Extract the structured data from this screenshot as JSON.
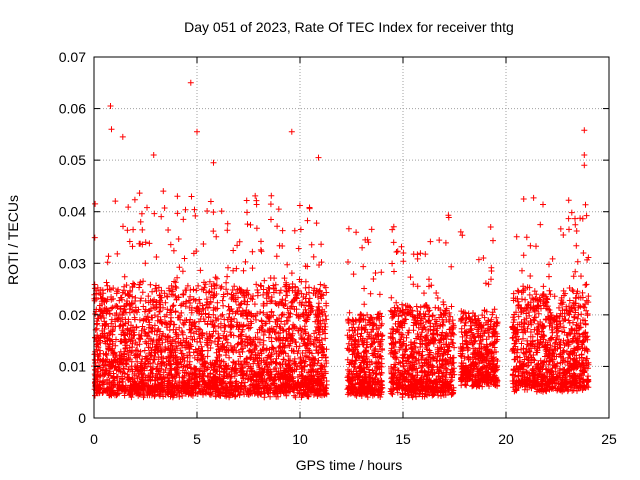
{
  "chart_data": {
    "type": "scatter",
    "title": "Day 051 of 2023, Rate Of TEC Index for receiver thtg",
    "xlabel": "GPS time / hours",
    "ylabel": "ROTI / TECUs",
    "xlim": [
      0,
      25
    ],
    "ylim": [
      0,
      0.07
    ],
    "x_ticks": [
      0,
      5,
      10,
      15,
      20,
      25
    ],
    "x_tick_labels": [
      "0",
      "5",
      "10",
      "15",
      "20",
      "25"
    ],
    "y_ticks": [
      0,
      0.01,
      0.02,
      0.03,
      0.04,
      0.05,
      0.06,
      0.07
    ],
    "y_tick_labels": [
      "0",
      "0.01",
      "0.02",
      "0.03",
      "0.04",
      "0.05",
      "0.06",
      "0.07"
    ],
    "grid": true,
    "marker": "plus",
    "color": "#ff0000",
    "coverage": [
      {
        "x_start": 0.0,
        "x_end": 11.3,
        "y_min": 0.002,
        "y_typical_max": 0.026
      },
      {
        "x_start": 12.3,
        "x_end": 14.0,
        "y_min": 0.002,
        "y_typical_max": 0.02
      },
      {
        "x_start": 14.4,
        "x_end": 17.5,
        "y_min": 0.002,
        "y_typical_max": 0.022
      },
      {
        "x_start": 17.8,
        "x_end": 19.6,
        "y_min": 0.004,
        "y_typical_max": 0.02
      },
      {
        "x_start": 20.3,
        "x_end": 24.0,
        "y_min": 0.003,
        "y_typical_max": 0.025
      }
    ],
    "notable_points": [
      {
        "x": 0.8,
        "y": 0.0605
      },
      {
        "x": 0.85,
        "y": 0.056
      },
      {
        "x": 1.4,
        "y": 0.0545
      },
      {
        "x": 2.9,
        "y": 0.051
      },
      {
        "x": 4.7,
        "y": 0.065
      },
      {
        "x": 5.0,
        "y": 0.0555
      },
      {
        "x": 5.8,
        "y": 0.0495
      },
      {
        "x": 9.6,
        "y": 0.0555
      },
      {
        "x": 10.9,
        "y": 0.0505
      },
      {
        "x": 23.8,
        "y": 0.0558
      },
      {
        "x": 23.8,
        "y": 0.051
      },
      {
        "x": 23.8,
        "y": 0.049
      }
    ]
  }
}
